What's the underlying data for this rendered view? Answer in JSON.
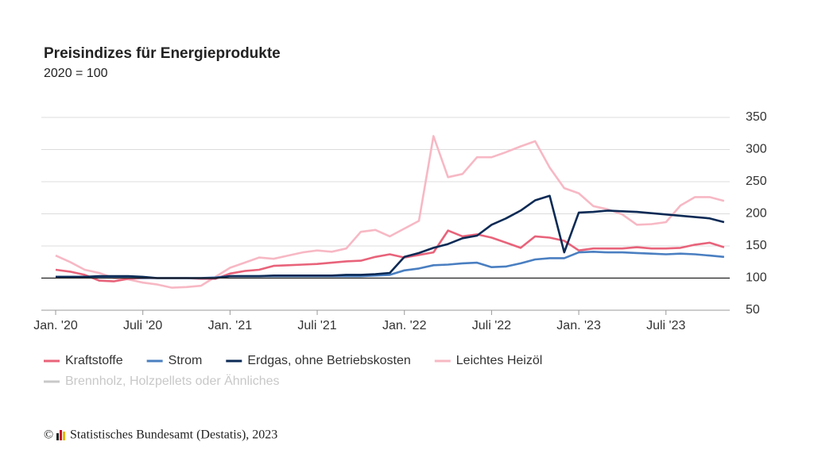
{
  "chart_data": {
    "type": "line",
    "title": "Preisindizes für Energieprodukte",
    "subtitle": "2020 = 100",
    "categories": [
      "Jan. '20",
      null,
      null,
      null,
      null,
      null,
      "Juli '20",
      null,
      null,
      null,
      null,
      null,
      "Jan. '21",
      null,
      null,
      null,
      null,
      null,
      "Juli '21",
      null,
      null,
      null,
      null,
      null,
      "Jan. '22",
      null,
      null,
      null,
      null,
      null,
      "Juli '22",
      null,
      null,
      null,
      null,
      null,
      "Jan. '23",
      null,
      null,
      null,
      null,
      null,
      "Juli '23",
      null,
      null,
      null,
      null
    ],
    "ylim": [
      50,
      350
    ],
    "yticks": [
      50,
      100,
      150,
      200,
      250,
      300,
      350
    ],
    "grid": true,
    "reference_line": 100,
    "legend": "bottom",
    "series": [
      {
        "name": "Kraftstoffe",
        "color": "#e8637a",
        "visible": true,
        "values": [
          113,
          110,
          105,
          96,
          95,
          99,
          100,
          100,
          100,
          100,
          99,
          99,
          107,
          111,
          113,
          119,
          120,
          121,
          122,
          124,
          126,
          127,
          133,
          137,
          132,
          136,
          140,
          174,
          165,
          168,
          163,
          155,
          147,
          165,
          163,
          158,
          143,
          146,
          146,
          146,
          148,
          146,
          146,
          147,
          152,
          155,
          148
        ]
      },
      {
        "name": "Strom",
        "color": "#4a7fc1",
        "visible": true,
        "values": [
          102,
          102,
          102,
          102,
          101,
          101,
          100,
          100,
          100,
          100,
          100,
          101,
          103,
          103,
          103,
          103,
          103,
          103,
          103,
          103,
          103,
          103,
          104,
          105,
          112,
          115,
          120,
          121,
          123,
          124,
          117,
          118,
          123,
          129,
          131,
          131,
          140,
          141,
          140,
          140,
          139,
          138,
          137,
          138,
          137,
          135,
          133
        ]
      },
      {
        "name": "Erdgas, ohne Betriebskosten",
        "color": "#0b2a55",
        "visible": true,
        "values": [
          102,
          102,
          102,
          103,
          103,
          103,
          102,
          100,
          100,
          100,
          100,
          100,
          103,
          103,
          103,
          104,
          104,
          104,
          104,
          104,
          105,
          105,
          106,
          108,
          133,
          139,
          147,
          153,
          162,
          166,
          183,
          193,
          205,
          221,
          228,
          140,
          202,
          203,
          205,
          204,
          203,
          201,
          199,
          197,
          195,
          193,
          187
        ]
      },
      {
        "name": "Leichtes Heizöl",
        "color": "#f7b8c4",
        "visible": true,
        "values": [
          135,
          125,
          113,
          108,
          100,
          98,
          93,
          90,
          85,
          86,
          88,
          102,
          116,
          124,
          132,
          130,
          135,
          140,
          143,
          141,
          146,
          172,
          175,
          165,
          177,
          189,
          321,
          257,
          262,
          288,
          288,
          296,
          305,
          313,
          272,
          240,
          232,
          212,
          207,
          199,
          183,
          184,
          187,
          213,
          226,
          226,
          220
        ]
      },
      {
        "name": "Brennholz, Holzpellets oder Ähnliches",
        "color": "#c8c8c8",
        "visible": false,
        "values": [
          null,
          null,
          null,
          null,
          null,
          null,
          null,
          null,
          null,
          null,
          null,
          null,
          null,
          null,
          null,
          null,
          null,
          null,
          null,
          null,
          null,
          null,
          null,
          null,
          null,
          null,
          null,
          null,
          null,
          null,
          null,
          null,
          null,
          null,
          null,
          null,
          null,
          null,
          null,
          null,
          null,
          null,
          null,
          null,
          null,
          null,
          null
        ]
      }
    ]
  },
  "footer": {
    "copyright": "©",
    "source": "Statistisches Bundesamt (Destatis), 2023"
  }
}
